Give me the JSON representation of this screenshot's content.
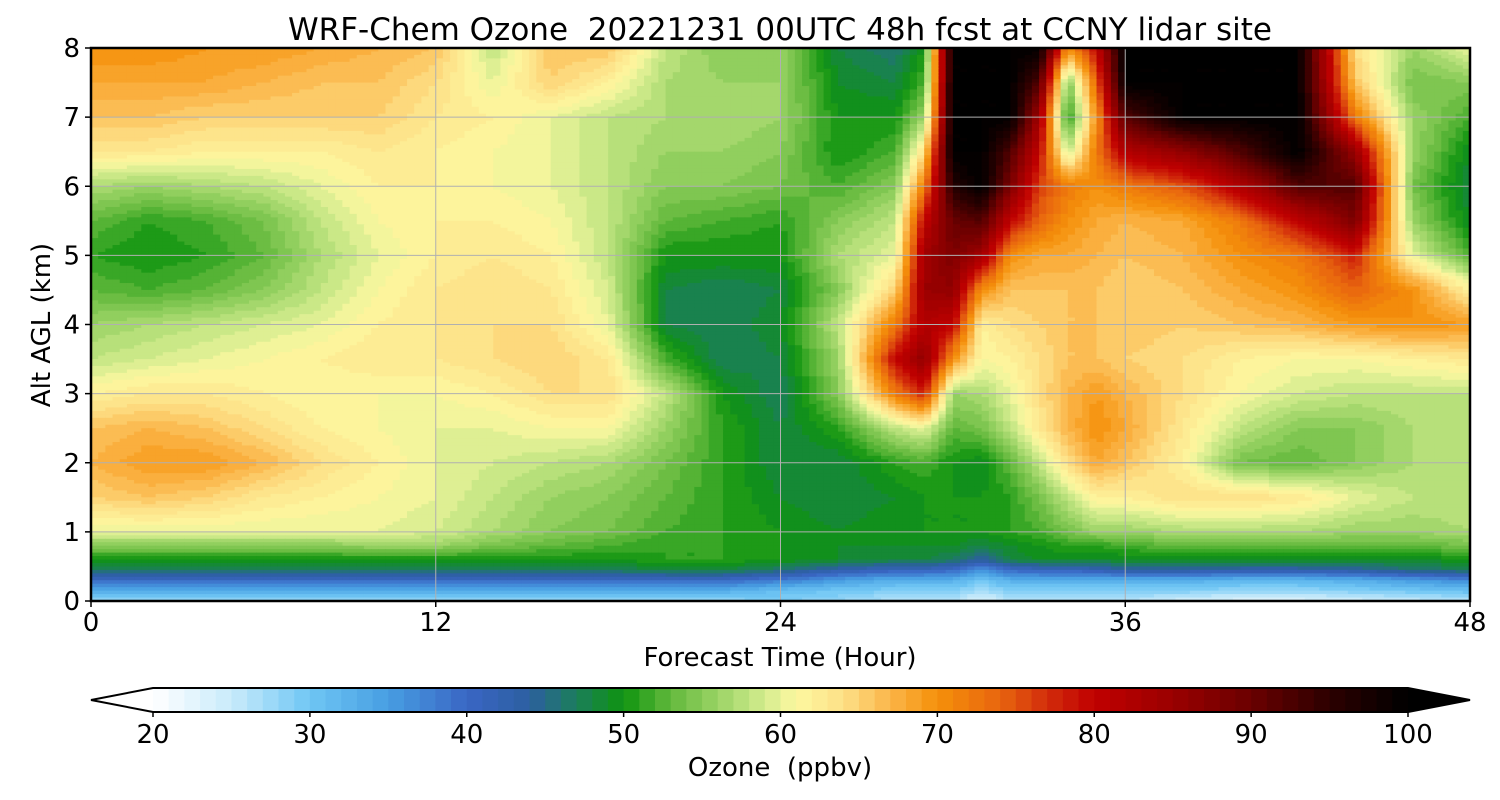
{
  "chart_data": {
    "type": "heatmap",
    "title": "WRF-Chem Ozone  20221231 00UTC 48h fcst at CCNY lidar site",
    "xlabel": "Forecast Time (Hour)",
    "ylabel": "Alt AGL (km)",
    "xlim": [
      0,
      48
    ],
    "ylim": [
      0,
      8
    ],
    "xticks": [
      0,
      12,
      24,
      36,
      48
    ],
    "yticks": [
      0,
      1,
      2,
      3,
      4,
      5,
      6,
      7,
      8
    ],
    "grid": true,
    "x": [
      0,
      2,
      4,
      6,
      8,
      10,
      12,
      14,
      16,
      18,
      20,
      22,
      24,
      26,
      28,
      29,
      30,
      31,
      32,
      33,
      34,
      35,
      36,
      38,
      40,
      42,
      44,
      46,
      48
    ],
    "y": [
      0,
      0.15,
      0.3,
      0.45,
      0.6,
      0.8,
      1,
      1.5,
      2,
      2.5,
      3,
      3.5,
      4,
      4.5,
      5,
      5.5,
      6,
      6.5,
      7,
      7.5,
      8
    ],
    "z": [
      [
        28,
        28,
        28,
        28,
        28,
        28,
        28,
        28,
        28,
        28,
        28,
        28,
        29,
        28,
        26,
        26,
        26,
        23,
        26,
        26,
        26,
        26,
        26,
        24,
        23,
        23,
        24,
        25,
        26
      ],
      [
        33,
        33,
        33,
        33,
        33,
        33,
        33,
        33,
        33,
        33,
        33,
        33,
        31,
        30,
        29,
        29,
        29,
        27,
        29,
        29,
        29,
        29,
        29,
        29,
        28,
        28,
        29,
        30,
        31
      ],
      [
        40,
        40,
        40,
        40,
        40,
        40,
        40,
        40,
        40,
        40,
        40,
        40,
        38,
        35,
        33,
        33,
        33,
        30,
        33,
        33,
        33,
        33,
        33,
        33,
        32,
        32,
        33,
        35,
        37
      ],
      [
        47,
        47,
        47,
        47,
        47,
        47,
        47,
        47,
        47,
        47,
        48,
        48,
        46,
        43,
        41,
        41,
        40,
        36,
        40,
        41,
        41,
        42,
        44,
        44,
        43,
        43,
        44,
        46,
        47
      ],
      [
        50,
        50,
        50,
        50,
        50,
        50,
        50,
        50,
        50,
        50,
        51,
        51,
        50,
        49,
        48,
        48,
        47,
        44,
        48,
        49,
        49,
        49,
        49,
        49,
        49,
        49,
        49,
        49,
        50
      ],
      [
        55,
        55,
        55,
        55,
        55,
        56,
        56,
        54,
        53,
        52,
        51,
        51,
        50,
        49,
        49,
        49,
        49,
        48,
        49,
        50,
        51,
        51,
        52,
        53,
        53,
        53,
        53,
        53,
        54
      ],
      [
        60,
        60,
        60,
        60,
        60,
        60,
        59,
        57,
        55,
        54,
        52,
        51,
        50,
        49,
        50,
        50,
        50,
        50,
        51,
        52,
        54,
        56,
        56,
        57,
        57,
        57,
        56,
        56,
        57
      ],
      [
        65,
        66,
        65,
        63,
        62,
        61,
        60,
        58,
        56,
        55,
        53,
        51,
        49,
        48,
        49,
        50,
        50,
        50,
        51,
        54,
        58,
        62,
        62,
        64,
        64,
        63,
        60,
        58,
        58
      ],
      [
        67,
        69,
        69,
        67,
        64,
        62,
        60,
        59,
        58,
        57,
        54,
        51,
        48,
        48,
        51,
        52,
        50,
        49,
        53,
        58,
        64,
        68,
        66,
        62,
        54,
        53,
        55,
        57,
        58
      ],
      [
        66,
        67,
        66,
        64,
        62,
        61,
        60,
        60,
        61,
        61,
        56,
        51,
        48,
        51,
        58,
        60,
        53,
        54,
        58,
        63,
        67,
        70,
        68,
        63,
        58,
        55,
        55,
        57,
        58
      ],
      [
        62,
        63,
        63,
        62,
        61,
        61,
        61,
        62,
        64,
        64,
        58,
        50,
        47,
        55,
        72,
        78,
        56,
        57,
        60,
        64,
        67,
        69,
        67,
        64,
        61,
        59,
        58,
        58,
        58
      ],
      [
        58,
        59,
        60,
        61,
        62,
        63,
        63,
        64,
        65,
        63,
        52,
        47,
        48,
        56,
        80,
        86,
        70,
        61,
        62,
        64,
        66,
        66,
        65,
        64,
        62,
        61,
        61,
        62,
        63
      ],
      [
        56,
        57,
        58,
        59,
        60,
        62,
        63,
        64,
        64,
        60,
        48,
        47,
        49,
        58,
        72,
        82,
        80,
        62,
        64,
        65,
        66,
        66,
        66,
        65,
        66,
        67,
        69,
        70,
        69
      ],
      [
        53,
        52,
        53,
        55,
        58,
        61,
        63,
        64,
        63,
        59,
        48,
        47,
        48,
        55,
        65,
        85,
        86,
        70,
        66,
        66,
        66,
        66,
        65,
        66,
        68,
        70,
        74,
        70,
        62
      ],
      [
        51,
        50,
        51,
        53,
        57,
        60,
        62,
        63,
        62,
        58,
        50,
        50,
        50,
        57,
        60,
        84,
        88,
        84,
        70,
        68,
        68,
        67,
        66,
        67,
        70,
        72,
        78,
        60,
        52
      ],
      [
        53,
        51,
        52,
        54,
        58,
        61,
        62,
        62,
        61,
        58,
        53,
        52,
        51,
        55,
        58,
        80,
        90,
        92,
        80,
        74,
        70,
        68,
        67,
        68,
        72,
        80,
        88,
        56,
        49
      ],
      [
        57,
        56,
        57,
        58,
        60,
        62,
        62,
        61,
        60,
        58,
        55,
        55,
        54,
        52,
        55,
        72,
        96,
        100,
        88,
        76,
        72,
        70,
        72,
        75,
        82,
        92,
        92,
        54,
        48
      ],
      [
        63,
        63,
        62,
        62,
        62,
        63,
        62,
        61,
        60,
        58,
        56,
        56,
        55,
        50,
        52,
        64,
        100,
        100,
        92,
        80,
        58,
        72,
        82,
        86,
        92,
        100,
        85,
        56,
        49
      ],
      [
        66,
        66,
        65,
        65,
        65,
        65,
        63,
        62,
        60,
        58,
        57,
        57,
        56,
        50,
        50,
        56,
        100,
        100,
        100,
        84,
        50,
        70,
        92,
        100,
        100,
        100,
        72,
        56,
        52
      ],
      [
        68,
        68,
        68,
        67,
        66,
        66,
        64,
        60,
        65,
        62,
        57,
        56,
        56,
        49,
        48,
        52,
        100,
        100,
        100,
        92,
        54,
        74,
        100,
        100,
        100,
        100,
        66,
        54,
        55
      ],
      [
        70,
        70,
        69,
        69,
        68,
        67,
        66,
        58,
        66,
        66,
        58,
        55,
        56,
        48,
        46,
        50,
        100,
        100,
        100,
        100,
        70,
        80,
        100,
        100,
        100,
        100,
        64,
        56,
        60
      ]
    ],
    "colorbar": {
      "label": "Ozone  (ppbv)",
      "min": 20,
      "max": 100,
      "step": 1,
      "ticks": [
        20,
        30,
        40,
        50,
        60,
        70,
        80,
        90,
        100
      ],
      "extend": "both",
      "stops": [
        {
          "v": 20,
          "c": "#ffffff"
        },
        {
          "v": 25,
          "c": "#c9ebfb"
        },
        {
          "v": 30,
          "c": "#6fc6f4"
        },
        {
          "v": 35,
          "c": "#479ee2"
        },
        {
          "v": 40,
          "c": "#3a66c4"
        },
        {
          "v": 44,
          "c": "#2c5fa0"
        },
        {
          "v": 47,
          "c": "#1b7e5a"
        },
        {
          "v": 50,
          "c": "#0f9410"
        },
        {
          "v": 53,
          "c": "#63b93c"
        },
        {
          "v": 56,
          "c": "#9ad365"
        },
        {
          "v": 59,
          "c": "#d4ec8e"
        },
        {
          "v": 61,
          "c": "#fdf8a0"
        },
        {
          "v": 64,
          "c": "#fde087"
        },
        {
          "v": 67,
          "c": "#fbb548"
        },
        {
          "v": 70,
          "c": "#f5900a"
        },
        {
          "v": 74,
          "c": "#e8650f"
        },
        {
          "v": 77,
          "c": "#d22c0b"
        },
        {
          "v": 80,
          "c": "#c00000"
        },
        {
          "v": 85,
          "c": "#9a0000"
        },
        {
          "v": 90,
          "c": "#6a0000"
        },
        {
          "v": 95,
          "c": "#2c0000"
        },
        {
          "v": 100,
          "c": "#000000"
        }
      ]
    }
  }
}
